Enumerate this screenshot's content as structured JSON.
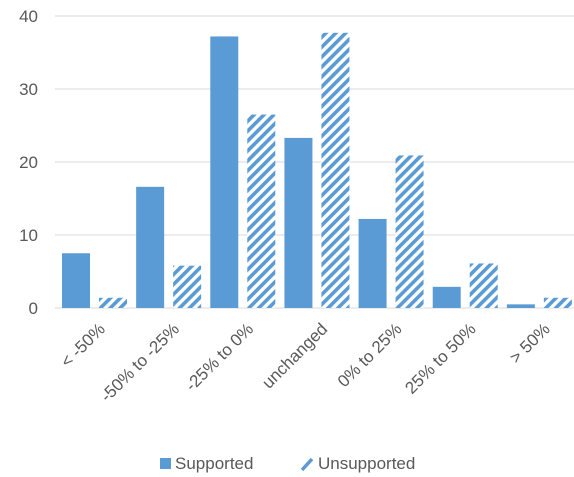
{
  "chart_data": {
    "type": "bar",
    "categories": [
      "< -50%",
      "-50% to -25%",
      "-25% to 0%",
      "unchanged",
      "0% to 25%",
      "25% to 50%",
      "> 50%"
    ],
    "series": [
      {
        "name": "Supported",
        "values": [
          7.5,
          16.6,
          37.2,
          23.3,
          12.2,
          2.9,
          0.5
        ],
        "color": "#5b9bd5",
        "pattern": "solid"
      },
      {
        "name": "Unsupported",
        "values": [
          1.4,
          5.8,
          26.5,
          37.7,
          20.9,
          6.1,
          1.4
        ],
        "color": "#5b9bd5",
        "pattern": "diagonal-hatch"
      }
    ],
    "y_ticks": [
      "0",
      "10",
      "20",
      "30",
      "40"
    ],
    "ylim": [
      0,
      40
    ],
    "grid": true,
    "legend_position": "bottom"
  }
}
